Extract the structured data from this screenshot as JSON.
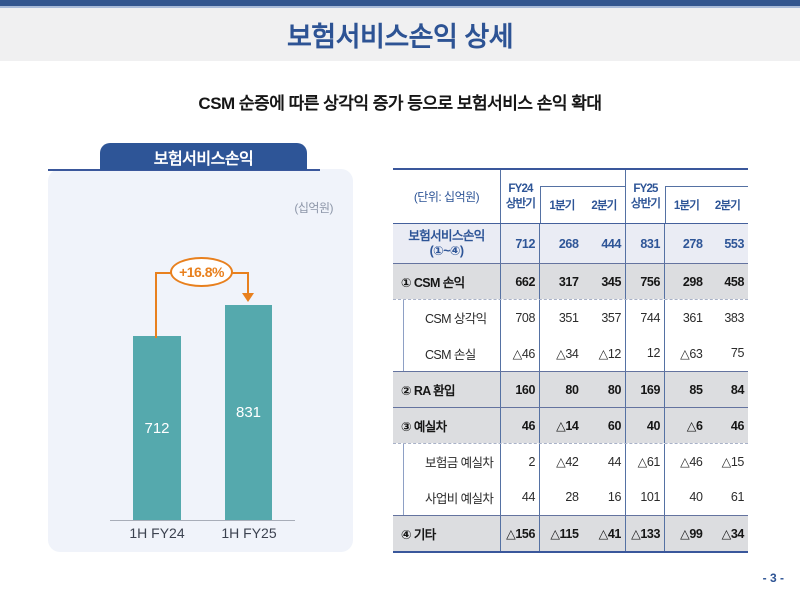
{
  "slide": {
    "title": "보험서비스손익 상세",
    "subtitle": "CSM 순증에 따른 상각익 증가 등으로 보험서비스 손익 확대",
    "page_number": "- 3 -"
  },
  "colors": {
    "top_bar_blue": "#33568f",
    "primary_blue": "#2e5597",
    "teal_bar": "#55a9ad",
    "accent_orange": "#e8801e",
    "section_row_bg": "#dcdde0",
    "summary_row_bg": "#eaecf4",
    "panel_bg": "#f0f3fa",
    "title_band_bg": "#f0f0f1"
  },
  "chart": {
    "tab_title": "보험서비스손익",
    "unit_label": "(십억원)",
    "growth_label": "+16.8%",
    "chart_data": {
      "type": "bar",
      "title": "보험서비스손익",
      "unit": "십억원",
      "categories": [
        "1H FY24",
        "1H FY25"
      ],
      "values": [
        712,
        831
      ],
      "bar_color": "#55a9ad",
      "annotation": "+16.8%",
      "grid": false,
      "value_labels": "inside-white"
    }
  },
  "table": {
    "unit_header": "(단위: 십억원)",
    "column_groups": [
      {
        "half_line1": "FY24",
        "half_line2": "상반기",
        "quarters": [
          "1분기",
          "2분기"
        ]
      },
      {
        "half_line1": "FY25",
        "half_line2": "상반기",
        "quarters": [
          "1분기",
          "2분기"
        ]
      }
    ],
    "rows": [
      {
        "type": "summary",
        "label": "보험서비스손익",
        "label2": "(①~④)",
        "values": [
          "712",
          "268",
          "444",
          "831",
          "278",
          "553"
        ]
      },
      {
        "type": "section",
        "label": "① CSM 손익",
        "values": [
          "662",
          "317",
          "345",
          "756",
          "298",
          "458"
        ]
      },
      {
        "type": "sub",
        "label": "CSM 상각익",
        "values": [
          "708",
          "351",
          "357",
          "744",
          "361",
          "383"
        ]
      },
      {
        "type": "sub",
        "label": "CSM 손실",
        "values": [
          "△46",
          "△34",
          "△12",
          "12",
          "△63",
          "75"
        ]
      },
      {
        "type": "section",
        "label": "② RA 환입",
        "values": [
          "160",
          "80",
          "80",
          "169",
          "85",
          "84"
        ]
      },
      {
        "type": "section",
        "label": "③ 예실차",
        "values": [
          "46",
          "△14",
          "60",
          "40",
          "△6",
          "46"
        ]
      },
      {
        "type": "sub",
        "label": "보험금 예실차",
        "values": [
          "2",
          "△42",
          "44",
          "△61",
          "△46",
          "△15"
        ]
      },
      {
        "type": "sub",
        "label": "사업비 예실차",
        "values": [
          "44",
          "28",
          "16",
          "101",
          "40",
          "61"
        ]
      },
      {
        "type": "section",
        "label": "④ 기타",
        "values": [
          "△156",
          "△115",
          "△41",
          "△133",
          "△99",
          "△34"
        ]
      }
    ]
  }
}
